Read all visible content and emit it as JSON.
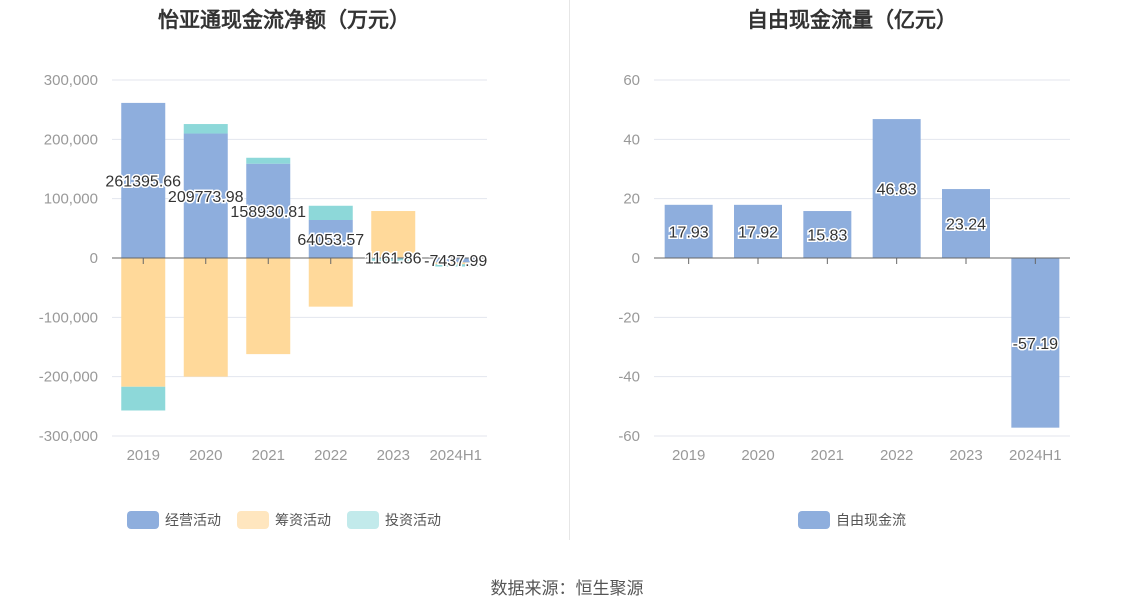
{
  "left": {
    "title": "怡亚通现金流净额（万元）",
    "chart_data": {
      "type": "bar",
      "stacked": true,
      "categories": [
        "2019",
        "2020",
        "2021",
        "2022",
        "2023",
        "2024H1"
      ],
      "ylim": [
        -300000,
        300000
      ],
      "yticks": [
        300000,
        200000,
        100000,
        0,
        -100000,
        -200000,
        -300000
      ],
      "ytick_labels": [
        "300,000",
        "200,000",
        "100,000",
        "0",
        "-100,000",
        "-200,000",
        "-300,000"
      ],
      "grid": true,
      "legend_position": "bottom",
      "series": [
        {
          "name": "经营活动",
          "color": "#8eaedd",
          "values": [
            261395.66,
            209773.98,
            158930.81,
            64053.57,
            1161.86,
            -7437.99
          ],
          "labels": [
            "261395.66",
            "209773.98",
            "158930.81",
            "64053.57",
            "1161.86",
            "-7437.99"
          ]
        },
        {
          "name": "筹资活动",
          "color": "#ffd99a",
          "values": [
            -217000,
            -200000,
            -162000,
            -82000,
            78000,
            -3000
          ]
        },
        {
          "name": "投资活动",
          "color": "#8dd8d9",
          "values": [
            -40000,
            16000,
            10000,
            24000,
            -8000,
            -4000
          ]
        }
      ]
    },
    "legend": [
      {
        "name": "经营活动",
        "color": "#8eaedd"
      },
      {
        "name": "筹资活动",
        "color": "#ffe6bf"
      },
      {
        "name": "投资活动",
        "color": "#c2eaeb"
      }
    ]
  },
  "right": {
    "title": "自由现金流量（亿元）",
    "chart_data": {
      "type": "bar",
      "categories": [
        "2019",
        "2020",
        "2021",
        "2022",
        "2023",
        "2024H1"
      ],
      "ylim": [
        -60,
        60
      ],
      "yticks": [
        60,
        40,
        20,
        0,
        -20,
        -40,
        -60
      ],
      "ytick_labels": [
        "60",
        "40",
        "20",
        "0",
        "-20",
        "-40",
        "-60"
      ],
      "grid": true,
      "legend_position": "bottom",
      "series": [
        {
          "name": "自由现金流",
          "color": "#8eaedd",
          "values": [
            17.93,
            17.92,
            15.83,
            46.83,
            23.24,
            -57.19
          ],
          "labels": [
            "17.93",
            "17.92",
            "15.83",
            "46.83",
            "23.24",
            "-57.19"
          ]
        }
      ]
    },
    "legend": [
      {
        "name": "自由现金流",
        "color": "#8eaedd"
      }
    ]
  },
  "source": "数据来源：恒生聚源"
}
